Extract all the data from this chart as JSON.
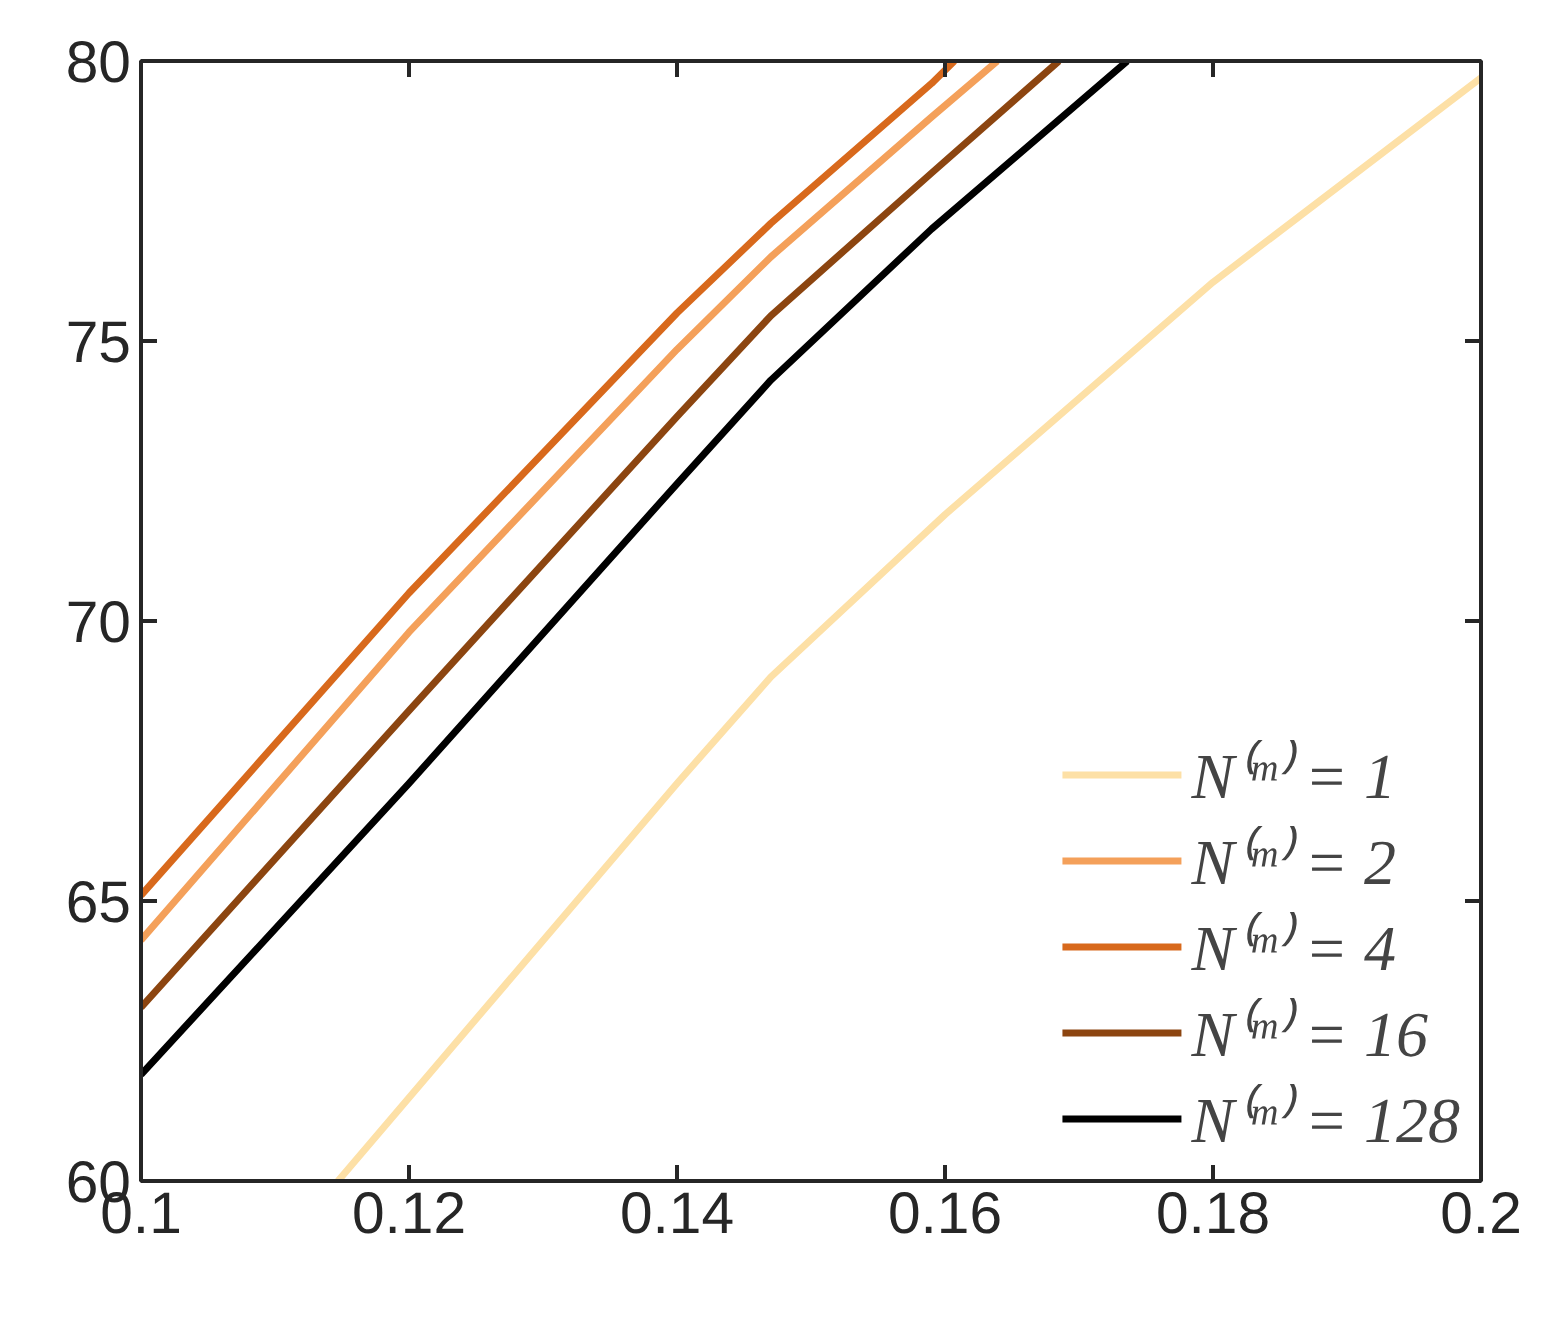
{
  "chart_data": {
    "type": "line",
    "xlim": [
      0.1,
      0.2
    ],
    "ylim": [
      60,
      80
    ],
    "xticks": [
      {
        "value": 0.1,
        "label": "0.1"
      },
      0.12,
      0.14,
      0.16,
      0.18,
      {
        "value": 0.2,
        "label": "0.2"
      }
    ],
    "yticks": [
      60,
      65,
      70,
      75,
      80
    ],
    "grid": false,
    "legend": "bottom right",
    "line_style": "solid",
    "marker": "none",
    "series": [
      {
        "name": "N⁽ᵐ⁾ = 1",
        "color": "#fde0a6",
        "x": [
          0.1147,
          0.14,
          0.147,
          0.16,
          0.18,
          0.2
        ],
        "values": [
          60,
          67.1,
          69.0,
          71.9,
          76.05,
          79.7
        ]
      },
      {
        "name": "N⁽ᵐ⁾ = 2",
        "color": "#f4a05a",
        "x": [
          0.1,
          0.12,
          0.14,
          0.147,
          0.159,
          0.1639
        ],
        "values": [
          64.3,
          69.8,
          74.85,
          76.5,
          79.0,
          80
        ]
      },
      {
        "name": "N⁽ᵐ⁾ = 4",
        "color": "#d8691c",
        "x": [
          0.1,
          0.12,
          0.14,
          0.147,
          0.159,
          0.1607
        ],
        "values": [
          65.1,
          70.5,
          75.5,
          77.1,
          79.6,
          80
        ]
      },
      {
        "name": "N⁽ᵐ⁾ = 16",
        "color": "#8c4510",
        "x": [
          0.1,
          0.12,
          0.14,
          0.147,
          0.159,
          0.1685
        ],
        "values": [
          63.1,
          68.4,
          73.65,
          75.45,
          78.0,
          80
        ]
      },
      {
        "name": "N⁽ᵐ⁾ = 128",
        "color": "#000000",
        "x": [
          0.1,
          0.12,
          0.14,
          0.147,
          0.159,
          0.1736
        ],
        "values": [
          61.9,
          67.1,
          72.45,
          74.3,
          77.0,
          80
        ]
      }
    ]
  }
}
